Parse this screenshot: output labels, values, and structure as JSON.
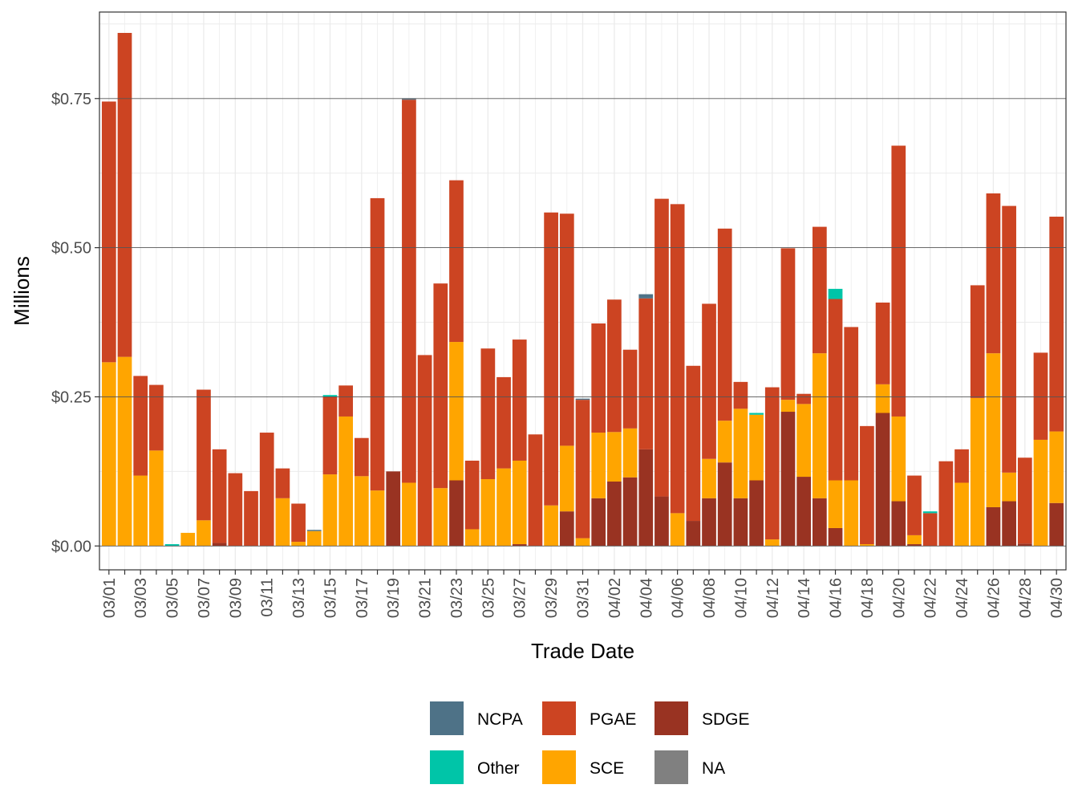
{
  "chart_data": {
    "type": "bar",
    "stacked": true,
    "xlabel": "Trade Date",
    "ylabel": "Millions",
    "ylim": [
      -0.04,
      0.895
    ],
    "yticks": [
      0,
      0.25,
      0.5,
      0.75
    ],
    "ytick_labels": [
      "$0.00",
      "$0.25",
      "$0.50",
      "$0.75"
    ],
    "legend_position": "bottom",
    "grid": true,
    "categories": [
      "03/01",
      "03/02",
      "03/03",
      "03/04",
      "03/05",
      "03/06",
      "03/07",
      "03/08",
      "03/09",
      "03/10",
      "03/11",
      "03/12",
      "03/13",
      "03/14",
      "03/15",
      "03/16",
      "03/17",
      "03/18",
      "03/19",
      "03/20",
      "03/21",
      "03/22",
      "03/23",
      "03/24",
      "03/25",
      "03/26",
      "03/27",
      "03/28",
      "03/29",
      "03/30",
      "03/31",
      "04/01",
      "04/02",
      "04/03",
      "04/04",
      "04/05",
      "04/06",
      "04/07",
      "04/08",
      "04/09",
      "04/10",
      "04/11",
      "04/12",
      "04/13",
      "04/14",
      "04/15",
      "04/16",
      "04/17",
      "04/18",
      "04/19",
      "04/20",
      "04/21",
      "04/22",
      "04/23",
      "04/24",
      "04/25",
      "04/26",
      "04/27",
      "04/28",
      "04/29",
      "04/30"
    ],
    "tick_labels": [
      "03/01",
      "03/03",
      "03/05",
      "03/07",
      "03/09",
      "03/11",
      "03/13",
      "03/15",
      "03/17",
      "03/19",
      "03/21",
      "03/23",
      "03/25",
      "03/27",
      "03/29",
      "03/31",
      "04/02",
      "04/04",
      "04/06",
      "04/08",
      "04/10",
      "04/12",
      "04/14",
      "04/16",
      "04/18",
      "04/20",
      "04/22",
      "04/24",
      "04/26",
      "04/28",
      "04/30"
    ],
    "series": [
      {
        "name": "SDGE",
        "color": "#993322",
        "values": [
          0,
          0,
          0,
          0,
          0,
          0,
          0,
          0.005,
          0,
          0,
          0,
          0,
          0,
          0,
          0,
          0,
          0,
          0,
          0.125,
          0,
          0,
          0,
          0.11,
          0,
          0,
          0,
          0.003,
          0,
          0,
          0.058,
          0,
          0.08,
          0.108,
          0.115,
          0.162,
          0.083,
          0,
          0.042,
          0.08,
          0.14,
          0.08,
          0.11,
          0,
          0.225,
          0.116,
          0.08,
          0.03,
          0,
          0,
          0.223,
          0.075,
          0.003,
          0,
          0,
          0,
          0,
          0.065,
          0.075,
          0.004,
          0,
          0.072
        ]
      },
      {
        "name": "SCE",
        "color": "#FFA500",
        "values": [
          0.308,
          0.317,
          0.118,
          0.16,
          0,
          0.022,
          0.043,
          0,
          0,
          0,
          0,
          0.08,
          0.007,
          0.025,
          0.12,
          0.217,
          0.117,
          0.093,
          0,
          0.106,
          0,
          0.097,
          0.232,
          0.028,
          0.112,
          0.13,
          0.14,
          0,
          0.068,
          0.11,
          0.013,
          0.11,
          0.083,
          0.082,
          0,
          0,
          0.055,
          0,
          0.066,
          0.07,
          0.15,
          0.11,
          0.011,
          0.02,
          0.122,
          0.243,
          0.08,
          0.11,
          0.003,
          0.048,
          0.142,
          0.015,
          0,
          0,
          0.106,
          0.248,
          0.258,
          0.048,
          0,
          0.178,
          0.12
        ]
      },
      {
        "name": "PGAE",
        "color": "#CC4422",
        "values": [
          0.437,
          0.543,
          0.167,
          0.11,
          0,
          0,
          0.219,
          0.157,
          0.122,
          0.092,
          0.19,
          0.05,
          0.064,
          0,
          0.13,
          0.052,
          0.064,
          0.49,
          0,
          0.642,
          0.32,
          0.343,
          0.271,
          0.115,
          0.219,
          0.153,
          0.203,
          0.187,
          0.491,
          0.389,
          0.232,
          0.183,
          0.222,
          0.132,
          0.253,
          0.499,
          0.518,
          0.26,
          0.26,
          0.322,
          0.045,
          0,
          0.255,
          0.254,
          0.017,
          0.212,
          0.304,
          0.257,
          0.198,
          0.137,
          0.454,
          0.1,
          0.055,
          0.142,
          0.056,
          0.189,
          0.268,
          0.447,
          0.144,
          0.146,
          0.36
        ]
      },
      {
        "name": "Other",
        "color": "#00C5A8",
        "values": [
          0,
          0,
          0,
          0,
          0.003,
          0,
          0,
          0,
          0,
          0,
          0,
          0,
          0,
          0,
          0.003,
          0,
          0,
          0,
          0,
          0,
          0,
          0,
          0,
          0,
          0,
          0,
          0,
          0,
          0,
          0,
          0,
          0,
          0,
          0,
          0,
          0,
          0,
          0,
          0,
          0,
          0,
          0.003,
          0,
          0,
          0,
          0,
          0.017,
          0,
          0,
          0,
          0,
          0,
          0.003,
          0,
          0,
          0,
          0,
          0,
          0,
          0,
          0
        ]
      },
      {
        "name": "NCPA",
        "color": "#4E7287",
        "values": [
          0,
          0,
          0,
          0,
          0,
          0,
          0,
          0,
          0,
          0,
          0,
          0,
          0,
          0.002,
          0,
          0,
          0,
          0,
          0,
          0.002,
          0,
          0,
          0,
          0,
          0,
          0,
          0,
          0,
          0,
          0,
          0.002,
          0,
          0,
          0,
          0.007,
          0,
          0,
          0,
          0,
          0,
          0,
          0,
          0,
          0,
          0,
          0,
          0,
          0,
          0,
          0,
          0,
          0,
          0,
          0,
          0,
          0,
          0,
          0,
          0,
          0,
          0
        ]
      },
      {
        "name": "NA",
        "color": "#808080",
        "values": [
          0,
          0,
          0,
          0,
          0,
          0,
          0,
          0,
          0,
          0,
          0,
          0,
          0,
          0,
          0,
          0,
          0,
          0,
          0,
          0,
          0,
          0,
          0,
          0,
          0,
          0,
          0,
          0,
          0,
          0,
          0,
          0,
          0,
          0,
          0,
          0,
          0,
          0,
          0,
          0,
          0,
          0,
          0,
          0,
          0,
          0,
          0,
          0,
          0,
          0,
          0,
          0,
          0,
          0,
          0,
          0,
          0,
          0,
          0,
          0,
          0
        ]
      }
    ],
    "legend": [
      [
        "NCPA",
        "PGAE",
        "SDGE"
      ],
      [
        "Other",
        "SCE",
        "NA"
      ]
    ]
  }
}
